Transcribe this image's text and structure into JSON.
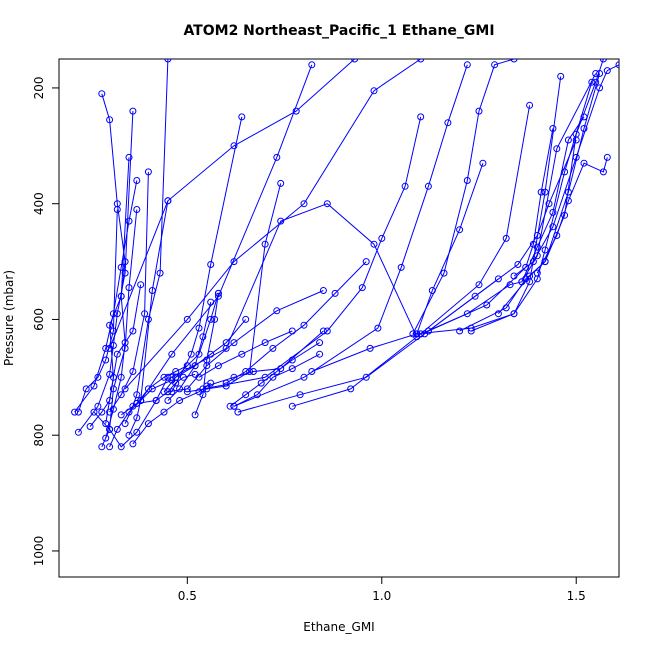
{
  "chart_data": {
    "type": "line",
    "title": "ATOM2 Northeast_Pacific_1 Ethane_GMI",
    "xlabel": "Ethane_GMI",
    "ylabel": "Pressure (mbar)",
    "xlim": [
      0.17,
      1.61
    ],
    "ylim": [
      1045,
      150
    ],
    "y_reversed": true,
    "x_ticks": [
      0.5,
      1.0,
      1.5
    ],
    "x_tick_labels": [
      "0.5",
      "1.0",
      "1.5"
    ],
    "y_ticks": [
      200,
      400,
      600,
      800,
      1000
    ],
    "y_tick_labels": [
      "200",
      "400",
      "600",
      "800",
      "1000"
    ],
    "grid": false,
    "legend": "none",
    "color": "#0000ff",
    "series": [
      {
        "x": [
          0.21,
          0.26,
          0.29,
          0.31,
          0.33,
          0.35,
          0.37
        ],
        "y": [
          760,
          715,
          650,
          590,
          510,
          430,
          360
        ]
      },
      {
        "x": [
          0.28,
          0.3,
          0.31,
          0.34,
          0.35,
          0.37
        ],
        "y": [
          820,
          790,
          720,
          650,
          545,
          410
        ]
      },
      {
        "x": [
          0.29,
          0.31,
          0.3,
          0.33,
          0.34,
          0.32,
          0.3,
          0.28
        ],
        "y": [
          780,
          700,
          610,
          560,
          500,
          400,
          255,
          210
        ]
      },
      {
        "x": [
          0.22,
          0.27,
          0.3,
          0.31,
          0.32,
          0.34,
          0.36
        ],
        "y": [
          795,
          750,
          695,
          645,
          590,
          520,
          240
        ]
      },
      {
        "x": [
          0.29,
          0.31,
          0.33,
          0.34,
          0.33,
          0.35
        ],
        "y": [
          805,
          755,
          700,
          640,
          560,
          320
        ]
      },
      {
        "x": [
          0.22,
          0.24,
          0.27,
          0.29,
          0.31,
          0.32
        ],
        "y": [
          760,
          720,
          700,
          670,
          620,
          410
        ]
      },
      {
        "x": [
          0.25,
          0.28,
          0.3,
          0.32,
          0.36,
          0.38
        ],
        "y": [
          785,
          760,
          740,
          660,
          620,
          540
        ]
      },
      {
        "x": [
          0.34,
          0.36,
          0.37,
          0.4,
          0.43,
          0.45
        ],
        "y": [
          780,
          750,
          730,
          600,
          520,
          150
        ]
      },
      {
        "x": [
          0.3,
          0.33,
          0.36,
          0.39,
          0.4
        ],
        "y": [
          760,
          730,
          690,
          590,
          345
        ]
      },
      {
        "x": [
          0.35,
          0.37,
          0.38,
          0.41,
          0.45
        ],
        "y": [
          800,
          770,
          740,
          550,
          395
        ]
      },
      {
        "x": [
          0.33,
          0.37,
          0.4,
          0.44,
          0.47,
          0.5
        ],
        "y": [
          765,
          745,
          720,
          700,
          690,
          680
        ]
      },
      {
        "x": [
          0.36,
          0.4,
          0.44,
          0.48,
          0.53,
          0.56
        ],
        "y": [
          815,
          780,
          760,
          740,
          725,
          710
        ]
      },
      {
        "x": [
          0.37,
          0.42,
          0.45,
          0.47,
          0.49,
          0.52
        ],
        "y": [
          745,
          740,
          725,
          710,
          700,
          695
        ]
      },
      {
        "x": [
          0.44,
          0.47,
          0.5,
          0.53,
          0.56,
          0.58
        ],
        "y": [
          725,
          700,
          680,
          660,
          600,
          555
        ]
      },
      {
        "x": [
          0.45,
          0.48,
          0.52,
          0.54,
          0.56
        ],
        "y": [
          740,
          720,
          680,
          630,
          570
        ]
      },
      {
        "x": [
          0.52,
          0.54,
          0.55,
          0.57,
          0.58
        ],
        "y": [
          765,
          730,
          670,
          600,
          555
        ]
      },
      {
        "x": [
          0.46,
          0.51,
          0.53,
          0.56,
          0.64
        ],
        "y": [
          725,
          660,
          615,
          505,
          250
        ]
      },
      {
        "x": [
          0.47,
          0.52,
          0.56,
          0.6,
          0.65
        ],
        "y": [
          700,
          680,
          660,
          640,
          600
        ]
      },
      {
        "x": [
          0.5,
          0.55,
          0.6,
          0.66,
          0.7,
          0.74
        ],
        "y": [
          725,
          720,
          715,
          690,
          470,
          365
        ]
      },
      {
        "x": [
          0.61,
          0.65,
          0.69,
          0.73,
          0.77,
          0.84
        ],
        "y": [
          750,
          730,
          710,
          690,
          670,
          640
        ]
      },
      {
        "x": [
          0.62,
          0.68,
          0.72,
          0.77,
          0.84
        ],
        "y": [
          750,
          730,
          700,
          685,
          660
        ]
      },
      {
        "x": [
          0.53,
          0.58,
          0.64,
          0.7,
          0.77
        ],
        "y": [
          700,
          680,
          660,
          640,
          620
        ]
      },
      {
        "x": [
          0.55,
          0.62,
          0.67,
          0.74,
          0.85
        ],
        "y": [
          715,
          700,
          690,
          685,
          620
        ]
      },
      {
        "x": [
          0.45,
          0.5,
          0.55,
          0.62,
          0.73,
          0.85
        ],
        "y": [
          725,
          720,
          680,
          640,
          585,
          550
        ]
      },
      {
        "x": [
          0.6,
          0.65,
          0.72,
          0.8,
          0.88,
          0.96
        ],
        "y": [
          710,
          690,
          650,
          610,
          555,
          500
        ]
      },
      {
        "x": [
          0.46,
          0.6,
          0.74,
          0.86,
          0.98,
          1.09
        ],
        "y": [
          700,
          650,
          430,
          400,
          470,
          630
        ]
      },
      {
        "x": [
          0.38,
          0.46,
          0.58,
          0.73,
          0.82
        ],
        "y": [
          740,
          660,
          560,
          320,
          160
        ]
      },
      {
        "x": [
          0.3,
          0.45,
          0.62,
          0.78,
          0.93
        ],
        "y": [
          650,
          395,
          300,
          240,
          150
        ]
      },
      {
        "x": [
          0.34,
          0.5,
          0.62,
          0.8,
          0.98,
          1.1
        ],
        "y": [
          720,
          600,
          500,
          400,
          205,
          150
        ]
      },
      {
        "x": [
          0.54,
          0.7,
          0.86,
          0.95,
          1.0,
          1.06,
          1.1
        ],
        "y": [
          720,
          700,
          620,
          545,
          460,
          370,
          250
        ]
      },
      {
        "x": [
          0.62,
          0.8,
          0.99,
          1.05,
          1.12,
          1.17,
          1.22
        ],
        "y": [
          750,
          700,
          615,
          510,
          370,
          260,
          160
        ]
      },
      {
        "x": [
          0.82,
          0.97,
          1.09,
          1.13,
          1.2,
          1.26
        ],
        "y": [
          690,
          650,
          625,
          550,
          445,
          330
        ]
      },
      {
        "x": [
          0.63,
          0.79,
          0.96,
          1.12,
          1.3
        ],
        "y": [
          760,
          730,
          700,
          620,
          530
        ]
      },
      {
        "x": [
          0.77,
          0.92,
          1.1,
          1.25,
          1.32,
          1.38
        ],
        "y": [
          750,
          720,
          625,
          540,
          460,
          230
        ]
      },
      {
        "x": [
          1.08,
          1.16,
          1.22,
          1.25,
          1.29,
          1.34
        ],
        "y": [
          625,
          520,
          360,
          240,
          160,
          150
        ]
      },
      {
        "x": [
          1.09,
          1.23,
          1.34,
          1.38,
          1.42,
          1.46
        ],
        "y": [
          625,
          615,
          590,
          535,
          380,
          180
        ]
      },
      {
        "x": [
          1.12,
          1.27,
          1.37,
          1.39,
          1.41,
          1.44
        ],
        "y": [
          620,
          575,
          510,
          470,
          380,
          270
        ]
      },
      {
        "x": [
          1.11,
          1.24,
          1.35,
          1.4,
          1.43,
          1.5
        ],
        "y": [
          625,
          560,
          505,
          455,
          400,
          290
        ]
      },
      {
        "x": [
          1.23,
          1.34,
          1.4,
          1.42,
          1.47,
          1.54
        ],
        "y": [
          620,
          590,
          530,
          480,
          345,
          190
        ]
      },
      {
        "x": [
          1.1,
          1.22,
          1.33,
          1.36,
          1.4,
          1.45,
          1.55
        ],
        "y": [
          625,
          590,
          540,
          535,
          490,
          305,
          175
        ]
      },
      {
        "x": [
          1.2,
          1.32,
          1.37,
          1.42,
          1.48,
          1.52,
          1.56
        ],
        "y": [
          620,
          580,
          530,
          500,
          380,
          270,
          175
        ]
      },
      {
        "x": [
          1.3,
          1.38,
          1.42,
          1.47,
          1.5,
          1.55,
          1.57
        ],
        "y": [
          590,
          525,
          500,
          420,
          280,
          190,
          150
        ]
      },
      {
        "x": [
          1.34,
          1.39,
          1.44,
          1.5,
          1.56,
          1.58,
          1.61
        ],
        "y": [
          525,
          500,
          440,
          320,
          200,
          170,
          160
        ]
      },
      {
        "x": [
          1.4,
          1.45,
          1.48,
          1.52,
          1.57,
          1.58
        ],
        "y": [
          520,
          455,
          395,
          330,
          345,
          320
        ]
      },
      {
        "x": [
          1.36,
          1.4,
          1.44,
          1.48,
          1.52
        ],
        "y": [
          535,
          475,
          415,
          290,
          250
        ]
      },
      {
        "x": [
          0.26,
          0.3,
          0.33,
          0.37,
          0.42,
          0.45
        ],
        "y": [
          760,
          790,
          820,
          795,
          740,
          700
        ]
      },
      {
        "x": [
          0.3,
          0.32,
          0.35,
          0.38,
          0.41,
          0.46
        ],
        "y": [
          820,
          790,
          760,
          740,
          720,
          705
        ]
      }
    ]
  }
}
